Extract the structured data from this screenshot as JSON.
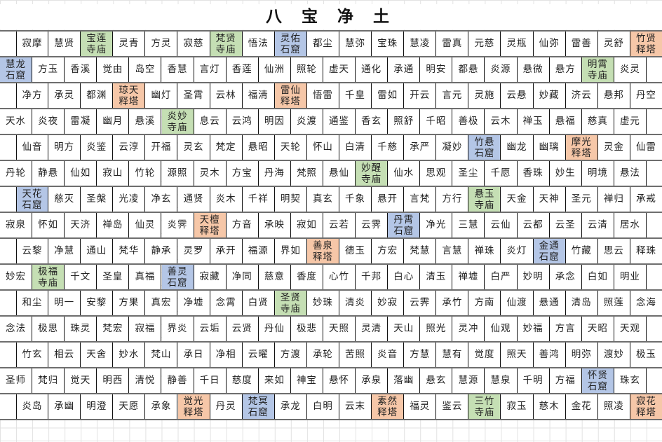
{
  "title": "八 宝 净 土",
  "category_colors": {
    "寺庙": "#c5dfb4",
    "石窟": "#b4c6e6",
    "释塔": "#f6c7a8"
  },
  "grid": {
    "rows": [
      [
        "寂摩",
        "慧贤",
        "宝莲寺庙",
        "灵青",
        "方灵",
        "寂慈",
        "梵贤寺庙",
        "悟法",
        "灵佑石窟",
        "都尘",
        "慧弥",
        "宝珠",
        "慧凌",
        "雷真",
        "元慈",
        "灵瓶",
        "仙弥",
        "雷善",
        "灵舒",
        "竹贤释塔"
      ],
      [
        "慧龙石窟",
        "方玉",
        "香溪",
        "觉由",
        "岛空",
        "香慧",
        "言灯",
        "香莲",
        "仙洲",
        "照轮",
        "虚天",
        "通化",
        "承通",
        "明安",
        "都悬",
        "炎源",
        "悬微",
        "悬方",
        "明霄寺庙",
        "炎灵"
      ],
      [
        "净方",
        "承灵",
        "都渊",
        "琼天释塔",
        "幽灯",
        "圣霄",
        "云林",
        "福清",
        "雷仙释塔",
        "悟雷",
        "千皇",
        "雷如",
        "开云",
        "言元",
        "灵施",
        "云悬",
        "妙藏",
        "济云",
        "悬邦",
        "丹空"
      ],
      [
        "天水",
        "炎夜",
        "雷凝",
        "幽月",
        "悬溪",
        "炎妙寺庙",
        "息云",
        "云鸿",
        "明因",
        "炎渡",
        "通鉴",
        "香玄",
        "照舒",
        "千昭",
        "善极",
        "云木",
        "禅玉",
        "悬福",
        "慈真",
        "虚元"
      ],
      [
        "仙音",
        "明方",
        "炎鉴",
        "云淳",
        "开福",
        "灵玄",
        "梵定",
        "悬昭",
        "天轮",
        "怀山",
        "白清",
        "千慈",
        "承严",
        "凝妙",
        "竹悬石窟",
        "幽龙",
        "幽璃",
        "摩光释塔",
        "灵金",
        "仙雷"
      ],
      [
        "丹轮",
        "静悬",
        "仙如",
        "寂山",
        "竹轮",
        "源照",
        "灵木",
        "方宝",
        "丹海",
        "梵照",
        "悬仙",
        "妙醒寺庙",
        "仙水",
        "思观",
        "圣尘",
        "千愿",
        "香珠",
        "妙生",
        "明境",
        "悬法"
      ],
      [
        "天花石窟",
        "慈灭",
        "圣槃",
        "光凌",
        "净玄",
        "通贤",
        "炎木",
        "千祥",
        "明契",
        "真玄",
        "千象",
        "悬开",
        "言梵",
        "方行",
        "悬玉寺庙",
        "天金",
        "天神",
        "圣元",
        "禅归",
        "承戒"
      ],
      [
        "寂泉",
        "怀如",
        "天济",
        "禅岛",
        "仙灵",
        "炎霁",
        "天檀释塔",
        "方音",
        "承映",
        "寂如",
        "云若",
        "云霁",
        "丹霄石窟",
        "净光",
        "三慧",
        "云仙",
        "云都",
        "云圣",
        "云清",
        "居水"
      ],
      [
        "云黎",
        "净慧",
        "通山",
        "梵华",
        "静承",
        "灵罗",
        "承开",
        "福源",
        "界如",
        "善泉释塔",
        "德玉",
        "方宏",
        "梵慧",
        "言慧",
        "禅珠",
        "炎灯",
        "金通石窟",
        "竹藏",
        "思云",
        "释珠"
      ],
      [
        "妙宏",
        "极福寺庙",
        "千文",
        "圣皇",
        "真福",
        "善灵石窟",
        "寂藏",
        "净同",
        "慈意",
        "香度",
        "心竹",
        "千邦",
        "白心",
        "清玉",
        "禅墟",
        "白严",
        "妙明",
        "承念",
        "白如",
        "明业"
      ],
      [
        "和尘",
        "明一",
        "安黎",
        "方果",
        "真宏",
        "净墟",
        "念霄",
        "白贤",
        "圣贤寺庙",
        "妙珠",
        "清炎",
        "妙寂",
        "云霁",
        "承竹",
        "方南",
        "仙渡",
        "悬通",
        "清岛",
        "照莲",
        "念海"
      ],
      [
        "念法",
        "极思",
        "珠灵",
        "梵宏",
        "寂福",
        "界炎",
        "云垢",
        "云贤",
        "丹仙",
        "极悲",
        "天照",
        "灵清",
        "天山",
        "照光",
        "灵冲",
        "仙观",
        "妙福",
        "方言",
        "天昭",
        "天观"
      ],
      [
        "竹玄",
        "相云",
        "天舍",
        "妙水",
        "梵山",
        "承日",
        "净相",
        "云曜",
        "方渡",
        "承轮",
        "苦照",
        "炎音",
        "方慧",
        "慧有",
        "觉度",
        "照天",
        "善鸿",
        "明弥",
        "渡妙",
        "极玉"
      ],
      [
        "圣师",
        "梵归",
        "觉天",
        "明西",
        "清悦",
        "静善",
        "千日",
        "慈度",
        "来如",
        "神宝",
        "悬怀",
        "承泉",
        "落幽",
        "悬玄",
        "慧源",
        "慧泉",
        "千明",
        "方福",
        "怀贤石窟",
        "珠玄"
      ],
      [
        "炎岛",
        "承幽",
        "明澄",
        "天愿",
        "承象",
        "觉光释塔",
        "丹灵",
        "梵冥石窟",
        "承龙",
        "白明",
        "云末",
        "素然释塔",
        "福灵",
        "鉴云",
        "三竹寺庙",
        "寂玉",
        "慈木",
        "金花",
        "照凌",
        "寂花释塔"
      ]
    ]
  }
}
